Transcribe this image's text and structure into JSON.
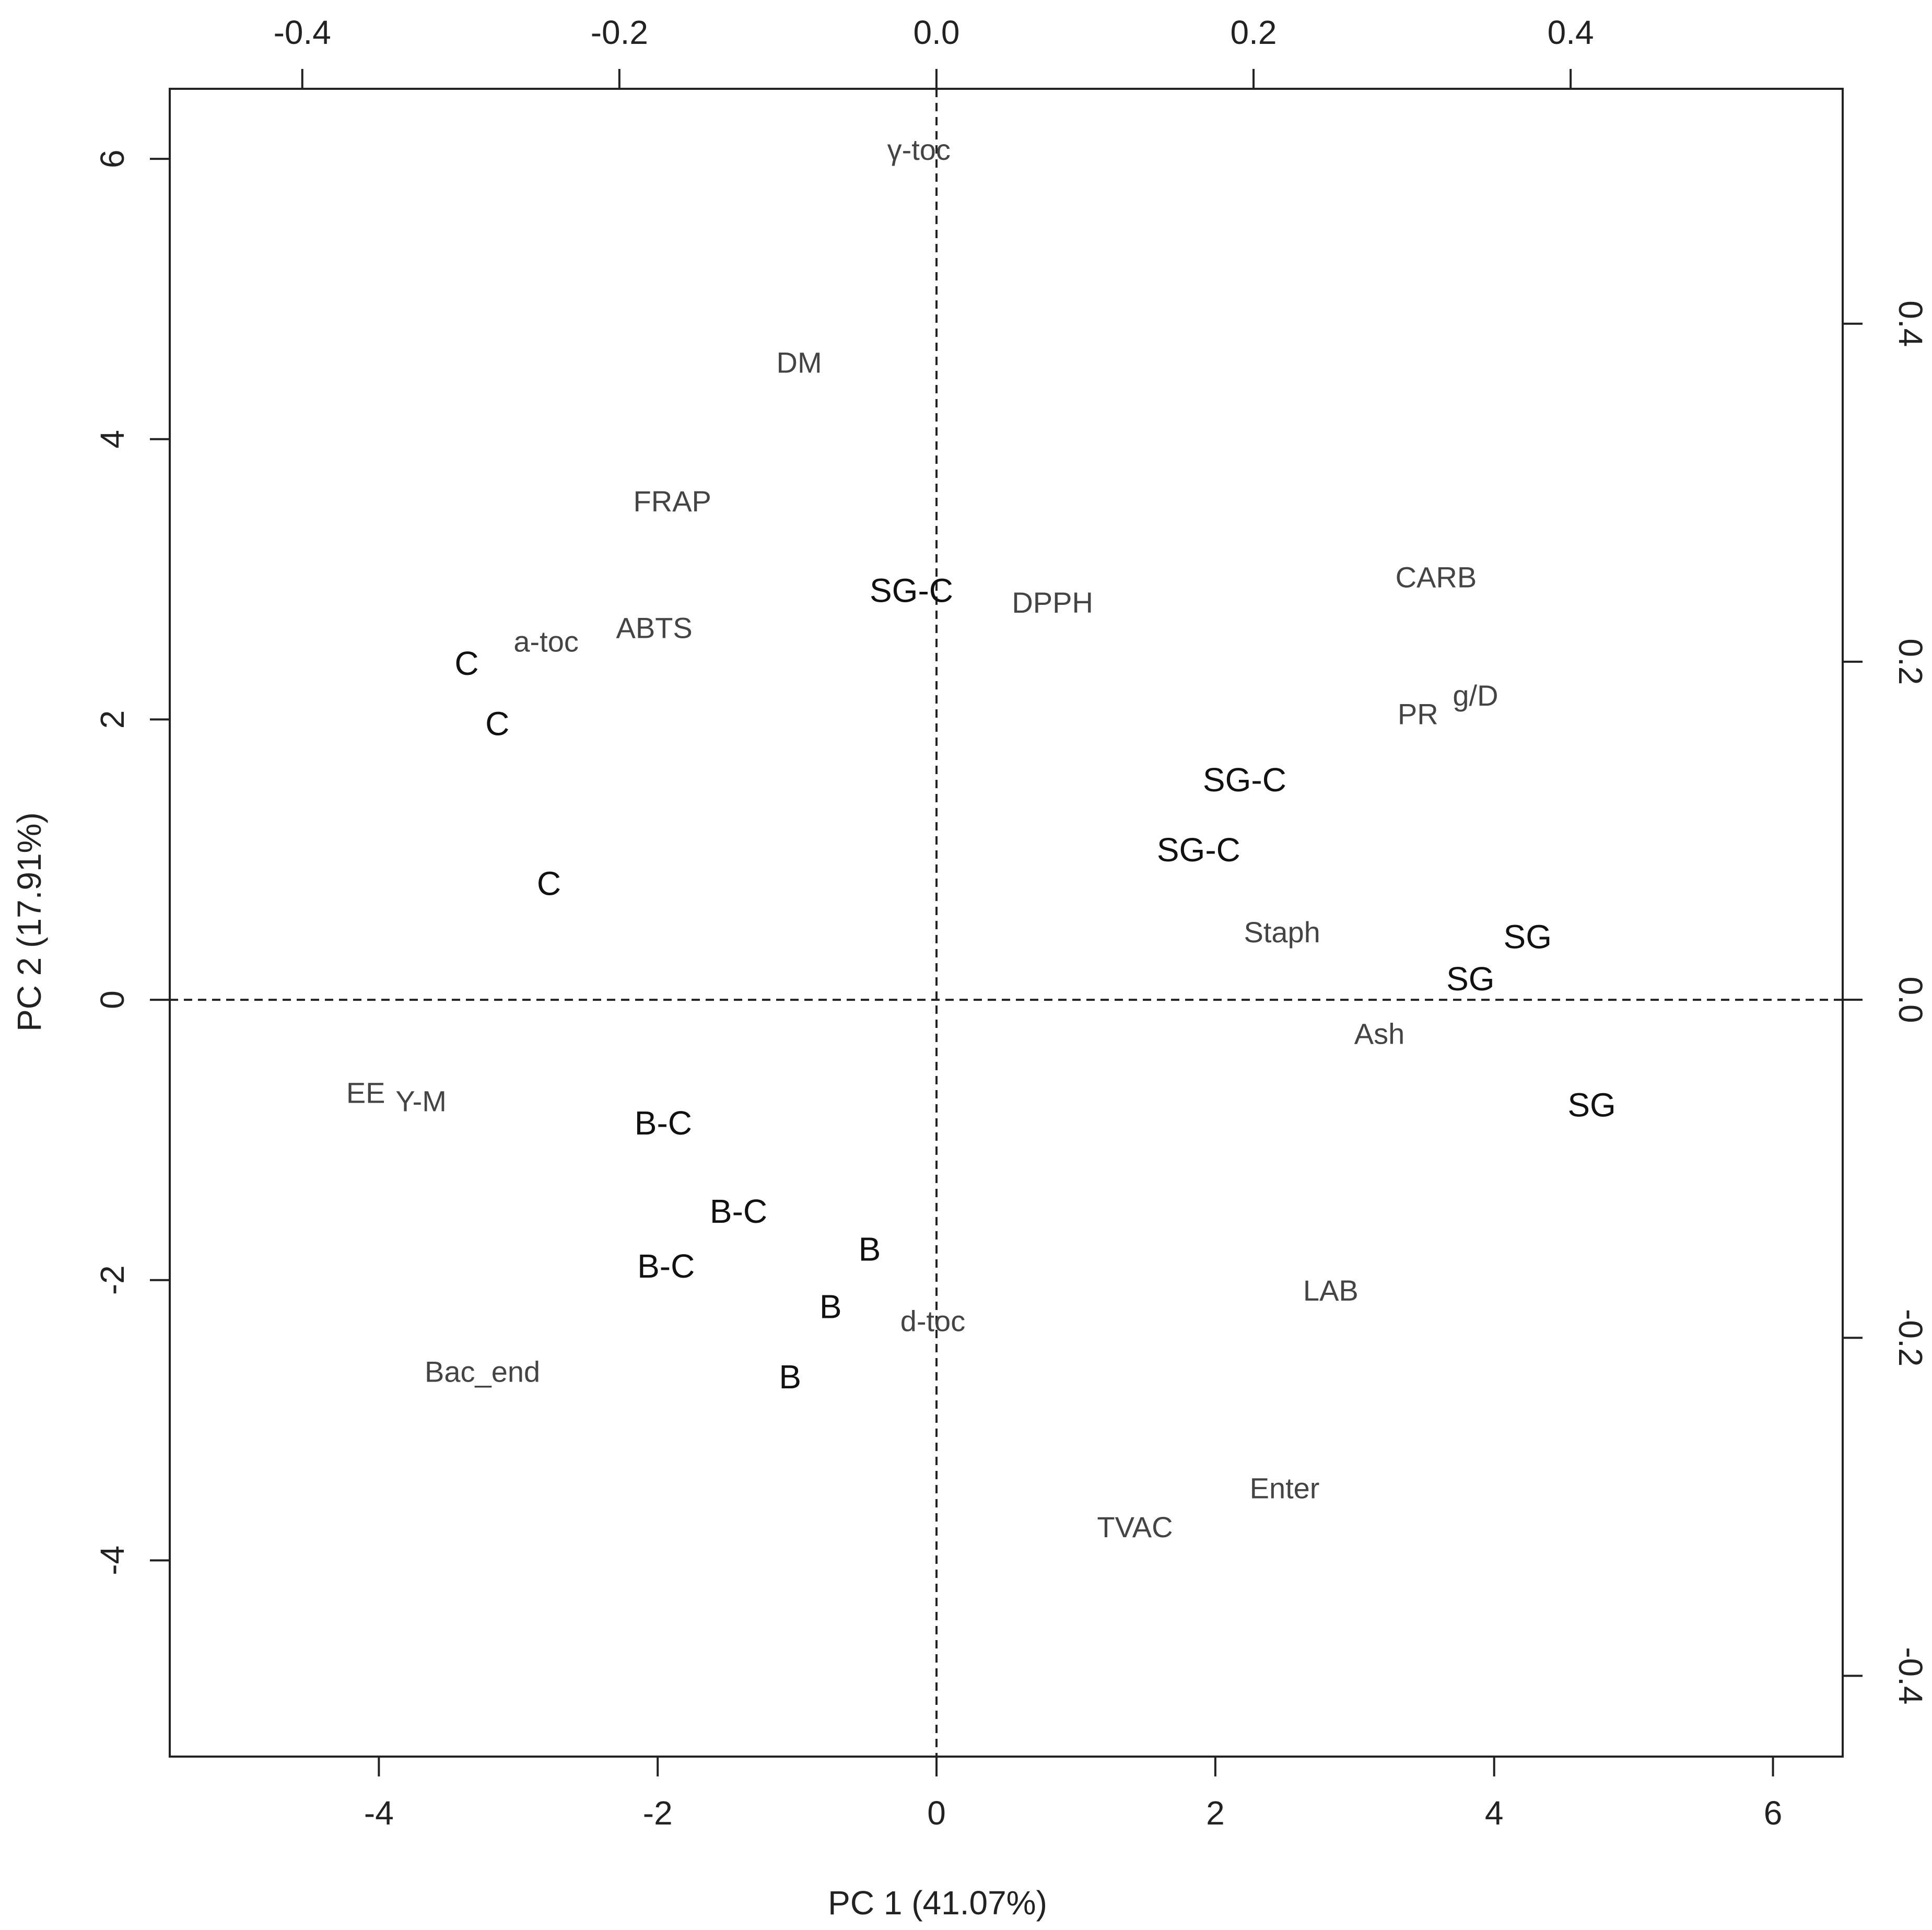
{
  "chart_data": {
    "type": "scatter",
    "xlabel": "PC 1 (41.07%)",
    "ylabel": "PC 2 (17.91%)",
    "xlim": [
      -5.5,
      6.5
    ],
    "ylim": [
      -5.4,
      6.5
    ],
    "xticks": [
      -4,
      -2,
      0,
      2,
      4,
      6
    ],
    "yticks": [
      -4,
      -2,
      0,
      2,
      4,
      6
    ],
    "x2lim": [
      -0.4836,
      0.5716
    ],
    "y2lim": [
      -0.4478,
      0.539
    ],
    "x2ticks": [
      -0.4,
      -0.2,
      0.0,
      0.2,
      0.4
    ],
    "x2tick_labels": [
      "-0.4",
      "-0.2",
      "0.0",
      "0.2",
      "0.4"
    ],
    "y2ticks": [
      -0.4,
      -0.2,
      0.0,
      0.2,
      0.4
    ],
    "y2tick_labels": [
      "-0.4",
      "-0.2",
      "0.0",
      "0.2",
      "0.4"
    ],
    "reference_lines": {
      "x": 0,
      "y": 0,
      "style": "dashed"
    },
    "series": [
      {
        "points": [
          {
            "label": "C",
            "x": -3.37,
            "y": 2.4
          },
          {
            "label": "C",
            "x": -3.15,
            "y": 1.97
          },
          {
            "label": "C",
            "x": -2.78,
            "y": 0.83
          },
          {
            "label": "SG-C",
            "x": -0.18,
            "y": 2.92
          },
          {
            "label": "SG-C",
            "x": 2.21,
            "y": 1.57
          },
          {
            "label": "SG-C",
            "x": 1.88,
            "y": 1.07
          },
          {
            "label": "SG",
            "x": 4.24,
            "y": 0.45
          },
          {
            "label": "SG",
            "x": 3.83,
            "y": 0.15
          },
          {
            "label": "SG",
            "x": 4.7,
            "y": -0.75
          },
          {
            "label": "B-C",
            "x": -1.96,
            "y": -0.88
          },
          {
            "label": "B-C",
            "x": -1.42,
            "y": -1.51
          },
          {
            "label": "B-C",
            "x": -1.94,
            "y": -1.9
          },
          {
            "label": "B",
            "x": -0.48,
            "y": -1.78
          },
          {
            "label": "B",
            "x": -0.76,
            "y": -2.19
          },
          {
            "label": "B",
            "x": -1.05,
            "y": -2.69
          }
        ]
      },
      {
        "points": [
          {
            "label": "γ-toc",
            "x": -0.0111,
            "y": 0.503
          },
          {
            "label": "DM",
            "x": -0.0866,
            "y": 0.377
          },
          {
            "label": "FRAP",
            "x": -0.1666,
            "y": 0.295
          },
          {
            "label": "DPPH",
            "x": 0.0732,
            "y": 0.235
          },
          {
            "label": "CARB",
            "x": 0.3151,
            "y": 0.25
          },
          {
            "label": "a-toc",
            "x": -0.2462,
            "y": 0.212
          },
          {
            "label": "ABTS",
            "x": -0.178,
            "y": 0.22
          },
          {
            "label": "g/D",
            "x": 0.34,
            "y": 0.18
          },
          {
            "label": "PR",
            "x": 0.3037,
            "y": 0.169
          },
          {
            "label": "Staph",
            "x": 0.218,
            "y": 0.04
          },
          {
            "label": "Ash",
            "x": 0.2794,
            "y": -0.02
          },
          {
            "label": "EE",
            "x": -0.36,
            "y": -0.055
          },
          {
            "label": "Y-M",
            "x": -0.3251,
            "y": -0.06
          },
          {
            "label": "LAB",
            "x": 0.2487,
            "y": -0.172
          },
          {
            "label": "d-toc",
            "x": -0.0023,
            "y": -0.19
          },
          {
            "label": "Bac_end",
            "x": -0.2864,
            "y": -0.22
          },
          {
            "label": "Enter",
            "x": 0.2196,
            "y": -0.289
          },
          {
            "label": "TVAC",
            "x": 0.1252,
            "y": -0.312
          }
        ]
      }
    ],
    "grid": false,
    "legend": "none"
  }
}
